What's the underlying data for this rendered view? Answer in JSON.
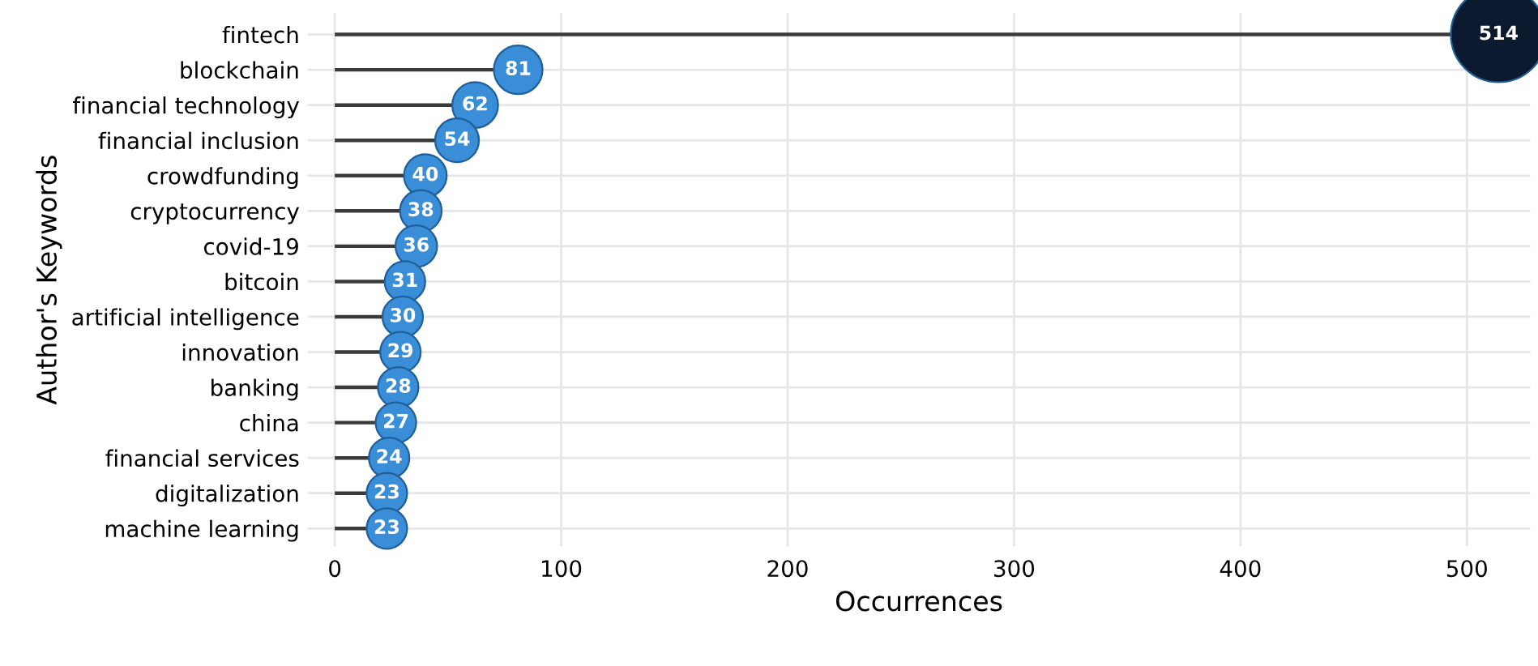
{
  "chart_data": {
    "type": "lollipop",
    "orientation": "horizontal",
    "xlabel": "Occurrences",
    "ylabel": "Author's Keywords",
    "categories": [
      "fintech",
      "blockchain",
      "financial technology",
      "financial inclusion",
      "crowdfunding",
      "cryptocurrency",
      "covid-19",
      "bitcoin",
      "artificial intelligence",
      "innovation",
      "banking",
      "china",
      "financial services",
      "digitalization",
      "machine learning"
    ],
    "values": [
      514,
      81,
      62,
      54,
      40,
      38,
      36,
      31,
      30,
      29,
      28,
      27,
      24,
      23,
      23
    ],
    "colors": [
      "#0b1a2e",
      "#3a8ed8",
      "#3a8ed8",
      "#3a8ed8",
      "#3a8ed8",
      "#3a8ed8",
      "#3a8ed8",
      "#3a8ed8",
      "#3a8ed8",
      "#3a8ed8",
      "#3a8ed8",
      "#3a8ed8",
      "#3a8ed8",
      "#3a8ed8",
      "#3a8ed8"
    ],
    "sizes": [
      1,
      0.26,
      0.23,
      0.21,
      0.2,
      0.19,
      0.19,
      0.18,
      0.18,
      0.18,
      0.18,
      0.18,
      0.18,
      0.18,
      0.18
    ],
    "xlim": [
      -12,
      528
    ],
    "xticks": [
      0,
      100,
      200,
      300,
      400,
      500
    ],
    "grid": true,
    "data_labels": true
  }
}
